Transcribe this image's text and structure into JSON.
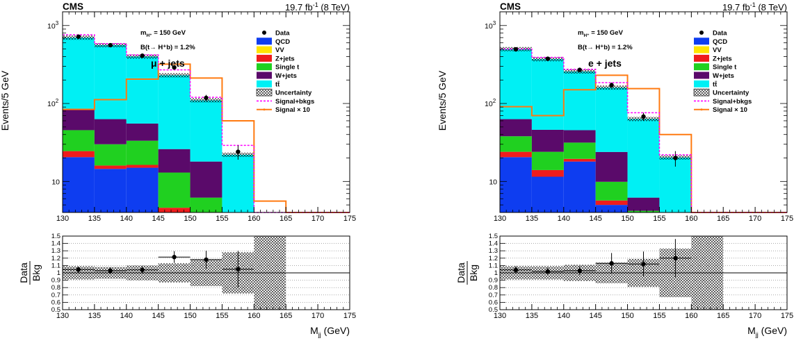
{
  "chart_data": [
    {
      "type": "bar",
      "panel": "mu",
      "cms_label": "CMS",
      "lumi_label": "19.7 fb",
      "lumi_sup": "-1",
      "lumi_suffix": " (8 TeV)",
      "mass_label": "m",
      "mass_sub": "H⁺",
      "mass_suffix": " = 150 GeV",
      "br_label": "B(t→ H⁺b) = 1.2%",
      "channel": "μ + jets",
      "ylabel": "Events/5 GeV",
      "xlabel": "M",
      "xlabel_sub": "jj",
      "xlabel_suffix": " (GeV)",
      "ratio_label_top": "Data",
      "ratio_label_bottom": "Bkg",
      "log_y": true,
      "xlim": [
        130,
        175
      ],
      "ylim": [
        4,
        1500
      ],
      "ratio_ylim": [
        0.5,
        1.5
      ],
      "x_ticks": [
        "130",
        "135",
        "140",
        "145",
        "150",
        "155",
        "160",
        "165",
        "170",
        "175"
      ],
      "y_ticks": [
        {
          "value": 10,
          "label": "10"
        },
        {
          "value": 100,
          "label": "10",
          "sup": "2"
        },
        {
          "value": 1000,
          "label": "10",
          "sup": "3"
        }
      ],
      "ratio_ticks": [
        "0.5",
        "0.6",
        "0.7",
        "0.8",
        "0.9",
        "1",
        "1.1",
        "1.2",
        "1.3",
        "1.4",
        "1.5"
      ],
      "bin_edges": [
        130,
        135,
        140,
        145,
        150,
        155,
        160,
        165,
        170,
        175
      ],
      "stack": [
        {
          "name": "QCD",
          "color": "#0e3df0",
          "values": [
            20.5,
            14.5,
            15.0,
            4.0,
            0,
            0,
            0,
            0,
            0
          ]
        },
        {
          "name": "VV",
          "color": "#ffe400",
          "values": [
            0,
            0,
            0,
            0,
            0,
            0,
            0,
            0,
            0
          ]
        },
        {
          "name": "Z+jets",
          "color": "#ef1c1c",
          "values": [
            4.0,
            1.5,
            1.3,
            0.6,
            0,
            0,
            0,
            0,
            0
          ]
        },
        {
          "name": "Single t",
          "color": "#20d020",
          "values": [
            21.0,
            14.0,
            17.0,
            8.4,
            6.2,
            0,
            0,
            0,
            0
          ]
        },
        {
          "name": "W+jets",
          "color": "#5a0a6a",
          "values": [
            39.0,
            33.0,
            22.0,
            13.0,
            11.8,
            0,
            0,
            0,
            0
          ]
        },
        {
          "name": "tt̄",
          "color": "#00f0f4",
          "values": [
            615,
            497,
            345,
            204,
            92,
            22,
            0,
            0,
            0
          ]
        }
      ],
      "uncertainty_label": "Uncertainty",
      "signal_bkgs": {
        "name": "Signal+bkgs",
        "color": "#ff00ff",
        "values": [
          760,
          585,
          420,
          270,
          120,
          29,
          0,
          0,
          0
        ]
      },
      "signal_x10": {
        "name": "Signal × 10",
        "color": "#ff7a10",
        "values": [
          84,
          112,
          205,
          320,
          212,
          60,
          5.6,
          0,
          0
        ]
      },
      "data": {
        "name": "Data",
        "x": [
          132.5,
          137.5,
          142.5,
          147.5,
          152.5,
          157.5
        ],
        "y": [
          720,
          560,
          410,
          290,
          118,
          24
        ],
        "err": [
          27,
          24,
          20,
          17,
          11,
          5
        ]
      },
      "ratio": {
        "x": [
          132.5,
          137.5,
          142.5,
          147.5,
          152.5,
          157.5
        ],
        "y": [
          1.045,
          1.03,
          1.04,
          1.215,
          1.18,
          1.05
        ],
        "err": [
          0.04,
          0.045,
          0.05,
          0.08,
          0.12,
          0.25
        ],
        "unc": [
          0.09,
          0.08,
          0.1,
          0.13,
          0.18,
          0.28,
          0.8
        ]
      }
    },
    {
      "type": "bar",
      "panel": "e",
      "cms_label": "CMS",
      "lumi_label": "19.7 fb",
      "lumi_sup": "-1",
      "lumi_suffix": " (8 TeV)",
      "mass_label": "m",
      "mass_sub": "H⁺",
      "mass_suffix": " = 150 GeV",
      "br_label": "B(t→ H⁺b) = 1.2%",
      "channel": "e + jets",
      "ylabel": "Events/5 GeV",
      "xlabel": "M",
      "xlabel_sub": "jj",
      "xlabel_suffix": " (GeV)",
      "ratio_label_top": "Data",
      "ratio_label_bottom": "Bkg",
      "log_y": true,
      "xlim": [
        130,
        175
      ],
      "ylim": [
        4,
        1500
      ],
      "ratio_ylim": [
        0.5,
        1.5
      ],
      "x_ticks": [
        "130",
        "135",
        "140",
        "145",
        "150",
        "155",
        "160",
        "165",
        "170",
        "175"
      ],
      "y_ticks": [
        {
          "value": 10,
          "label": "10"
        },
        {
          "value": 100,
          "label": "10",
          "sup": "2"
        },
        {
          "value": 1000,
          "label": "10",
          "sup": "3"
        }
      ],
      "ratio_ticks": [
        "0.5",
        "0.6",
        "0.7",
        "0.8",
        "0.9",
        "1",
        "1.1",
        "1.2",
        "1.3",
        "1.4",
        "1.5"
      ],
      "bin_edges": [
        130,
        135,
        140,
        145,
        150,
        155,
        160,
        165,
        170,
        175
      ],
      "stack": [
        {
          "name": "QCD",
          "color": "#0e3df0",
          "values": [
            20.5,
            11.5,
            18.0,
            5.0,
            0,
            0.3,
            0,
            0,
            0
          ]
        },
        {
          "name": "VV",
          "color": "#ffe400",
          "values": [
            0,
            0,
            0,
            0,
            0,
            0,
            0,
            0,
            0
          ]
        },
        {
          "name": "Z+jets",
          "color": "#ef1c1c",
          "values": [
            3.5,
            2.5,
            1.5,
            0.7,
            0,
            0,
            0,
            0,
            0
          ]
        },
        {
          "name": "Single t",
          "color": "#20d020",
          "values": [
            14.0,
            10.0,
            12.0,
            4.2,
            4.2,
            0,
            0,
            0,
            0
          ]
        },
        {
          "name": "W+jets",
          "color": "#5a0a6a",
          "values": [
            25.0,
            22.0,
            14.0,
            14.0,
            2.0,
            0,
            0,
            0,
            0
          ]
        },
        {
          "name": "tt̄",
          "color": "#00f0f4",
          "values": [
            435,
            324,
            212,
            136,
            57,
            20,
            0,
            0,
            0
          ]
        }
      ],
      "uncertainty_label": "Uncertainty",
      "signal_bkgs": {
        "name": "Signal+bkgs",
        "color": "#ff00ff",
        "values": [
          500,
          390,
          275,
          185,
          76,
          22,
          0,
          0,
          0
        ]
      },
      "signal_x10": {
        "name": "Signal × 10",
        "color": "#ff7a10",
        "values": [
          91,
          70,
          150,
          230,
          155,
          40,
          0,
          0,
          0
        ]
      },
      "data": {
        "name": "Data",
        "x": [
          132.5,
          137.5,
          142.5,
          147.5,
          152.5,
          157.5
        ],
        "y": [
          495,
          375,
          270,
          172,
          68,
          20
        ],
        "err": [
          22,
          19,
          16,
          13,
          8,
          4.5
        ]
      },
      "ratio": {
        "x": [
          132.5,
          137.5,
          142.5,
          147.5,
          152.5,
          157.5
        ],
        "y": [
          1.04,
          1.02,
          1.03,
          1.13,
          1.12,
          1.2
        ],
        "err": [
          0.05,
          0.05,
          0.06,
          0.14,
          0.17,
          0.26
        ],
        "unc": [
          0.09,
          0.09,
          0.11,
          0.14,
          0.19,
          0.33,
          0.8
        ]
      }
    }
  ]
}
